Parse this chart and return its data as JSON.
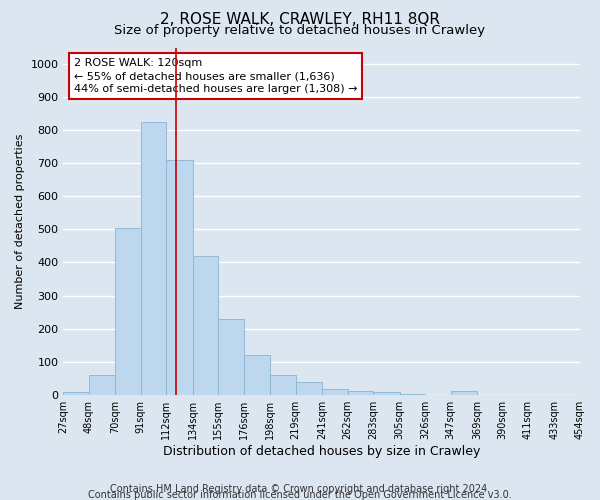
{
  "title": "2, ROSE WALK, CRAWLEY, RH11 8QR",
  "subtitle": "Size of property relative to detached houses in Crawley",
  "xlabel": "Distribution of detached houses by size in Crawley",
  "ylabel": "Number of detached properties",
  "bin_edges": [
    27,
    48,
    70,
    91,
    112,
    134,
    155,
    176,
    198,
    219,
    241,
    262,
    283,
    305,
    326,
    347,
    369,
    390,
    411,
    433,
    454
  ],
  "bar_heights": [
    8,
    60,
    505,
    825,
    710,
    420,
    230,
    120,
    60,
    37,
    17,
    12,
    8,
    3,
    0,
    10,
    0,
    0,
    0,
    0
  ],
  "bar_color": "#bdd7ee",
  "bar_edge_color": "#8ab4d4",
  "vertical_line_x": 120,
  "vline_color": "#cc0000",
  "annotation_text": "2 ROSE WALK: 120sqm\n← 55% of detached houses are smaller (1,636)\n44% of semi-detached houses are larger (1,308) →",
  "annotation_box_color": "#ffffff",
  "annotation_box_edge_color": "#cc0000",
  "ylim": [
    0,
    1050
  ],
  "yticks": [
    0,
    100,
    200,
    300,
    400,
    500,
    600,
    700,
    800,
    900,
    1000
  ],
  "tick_labels": [
    "27sqm",
    "48sqm",
    "70sqm",
    "91sqm",
    "112sqm",
    "134sqm",
    "155sqm",
    "176sqm",
    "198sqm",
    "219sqm",
    "241sqm",
    "262sqm",
    "283sqm",
    "305sqm",
    "326sqm",
    "347sqm",
    "369sqm",
    "390sqm",
    "411sqm",
    "433sqm",
    "454sqm"
  ],
  "footer_line1": "Contains HM Land Registry data © Crown copyright and database right 2024.",
  "footer_line2": "Contains public sector information licensed under the Open Government Licence v3.0.",
  "bg_color": "#dce6f1",
  "plot_bg_color": "#dce6f1",
  "grid_color": "#ffffff",
  "title_fontsize": 11,
  "subtitle_fontsize": 9.5,
  "ylabel_fontsize": 8,
  "xlabel_fontsize": 9,
  "annotation_fontsize": 8,
  "footer_fontsize": 7,
  "ytick_fontsize": 8,
  "xtick_fontsize": 7
}
